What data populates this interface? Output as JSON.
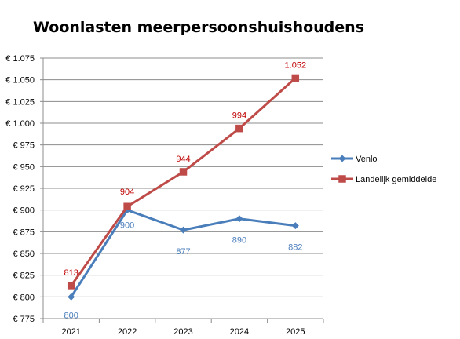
{
  "chart_data": {
    "type": "line",
    "title": "Woonlasten meerpersoonshuishoudens",
    "categories": [
      "2021",
      "2022",
      "2023",
      "2024",
      "2025"
    ],
    "ylim": [
      775,
      1075
    ],
    "y_ticks": [
      "€ 775",
      "€ 800",
      "€ 825",
      "€ 850",
      "€ 875",
      "€ 900",
      "€ 925",
      "€ 950",
      "€ 975",
      "€ 1.000",
      "€ 1.025",
      "€ 1.050",
      "€ 1.075"
    ],
    "grid": true,
    "legend_position": "right",
    "series": [
      {
        "name": "Venlo",
        "values": [
          800,
          900,
          877,
          890,
          882
        ],
        "labels": [
          "800",
          "900",
          "877",
          "890",
          "882"
        ],
        "color": "#4a7ebb",
        "label_color": "#4a7ebb",
        "marker": "diamond"
      },
      {
        "name": "Landelijk gemiddelde",
        "values": [
          813,
          904,
          944,
          994,
          1052
        ],
        "labels": [
          "813",
          "904",
          "944",
          "994",
          "1.052"
        ],
        "color": "#be4b48",
        "label_color": "#c00000",
        "marker": "square"
      }
    ]
  }
}
